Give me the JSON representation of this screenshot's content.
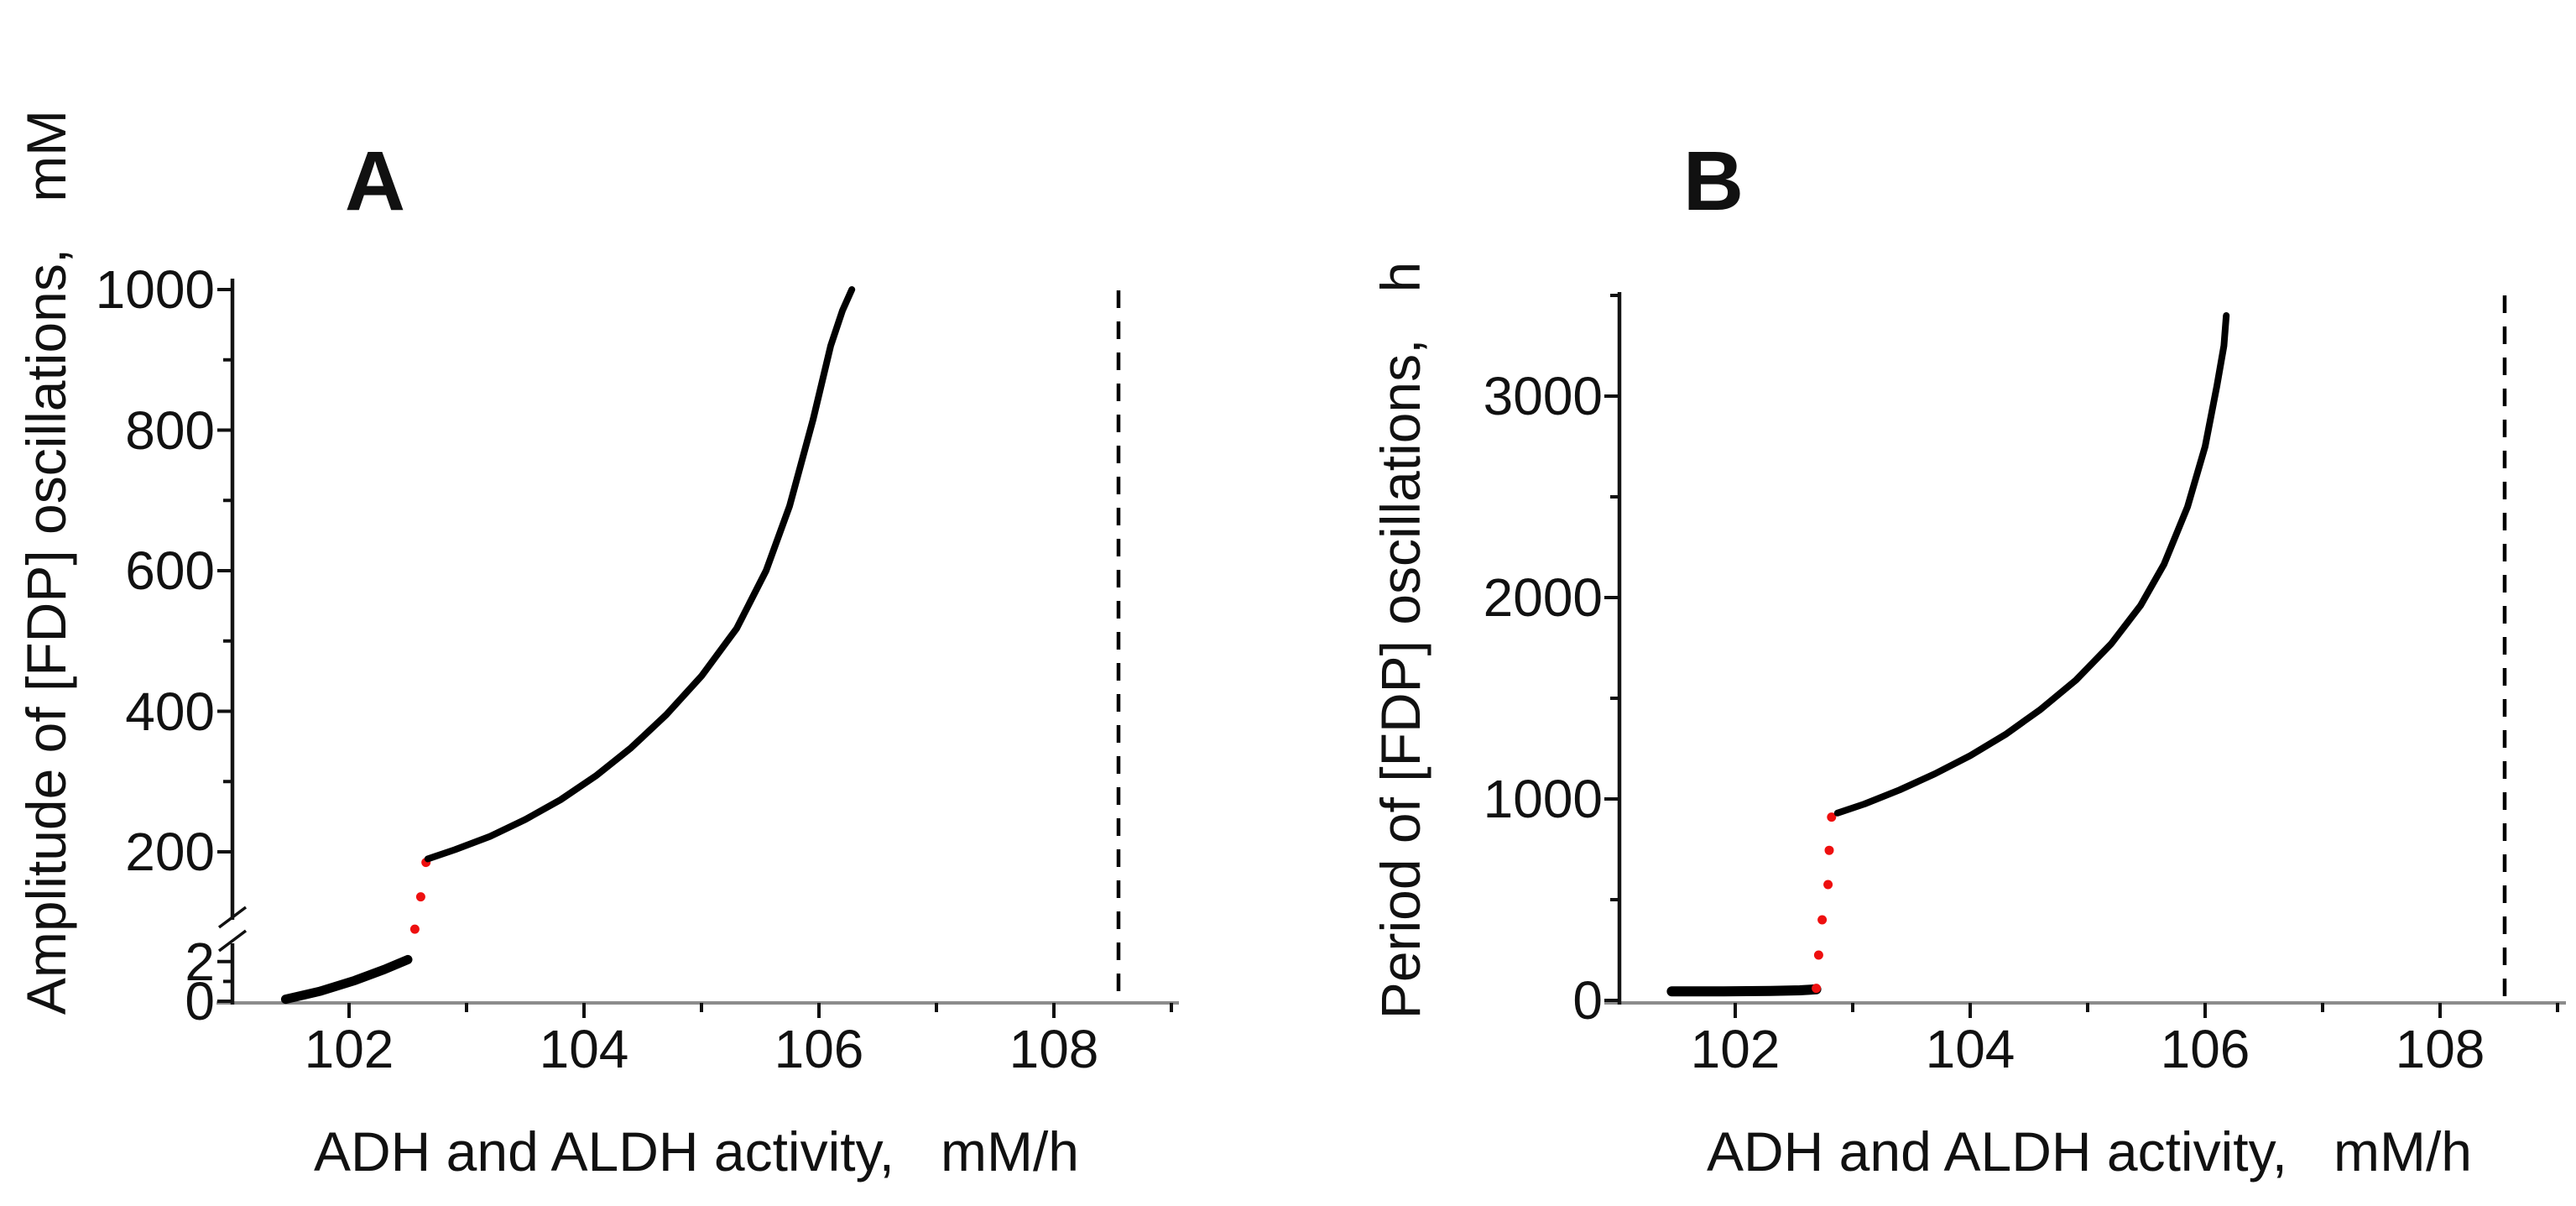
{
  "figure": {
    "background": "#ffffff",
    "description_title": ""
  },
  "colors": {
    "curve": "#000000",
    "unstable_dots": "#ee0f0f",
    "x_axis_line": "#8c8c8c",
    "y_axis_line": "#141414",
    "dashed_line": "#000000",
    "text": "#111111"
  },
  "panel_a": {
    "letter": "A",
    "y_axis_label": "Amplitude of [FDP] oscillations,   mM",
    "x_axis_label": "ADH and ALDH activity,   mM/h",
    "y_tick_labels": [
      "1000",
      "800",
      "600",
      "400",
      "200",
      "2",
      "0"
    ],
    "x_tick_labels": [
      "102",
      "104",
      "106",
      "108"
    ]
  },
  "panel_b": {
    "letter": "B",
    "y_axis_label": "Period of [FDP] oscillations,   h",
    "x_axis_label": "ADH and ALDH activity,   mM/h",
    "y_tick_labels": [
      "3000",
      "2000",
      "1000",
      "0"
    ],
    "x_tick_labels": [
      "102",
      "104",
      "106",
      "108"
    ]
  },
  "chart_data": [
    {
      "type": "line",
      "panel": "A",
      "title": "A",
      "xlabel": "ADH and ALDH activity, mM/h",
      "ylabel": "Amplitude of [FDP] oscillations, mM",
      "x_range": [
        101,
        109
      ],
      "ylim": [
        0,
        1000
      ],
      "y_axis_break_between": [
        2,
        200
      ],
      "grid": false,
      "legend": false,
      "x_ticks": [
        {
          "v": 102,
          "major": true
        },
        {
          "v": 103,
          "major": false
        },
        {
          "v": 104,
          "major": true
        },
        {
          "v": 105,
          "major": false
        },
        {
          "v": 106,
          "major": true
        },
        {
          "v": 107,
          "major": false
        },
        {
          "v": 108,
          "major": true
        },
        {
          "v": 109,
          "major": false
        }
      ],
      "y_ticks": [
        {
          "v": 1000,
          "scale": "high",
          "major": true
        },
        {
          "v": 900,
          "scale": "high",
          "major": false
        },
        {
          "v": 800,
          "scale": "high",
          "major": true
        },
        {
          "v": 700,
          "scale": "high",
          "major": false
        },
        {
          "v": 600,
          "scale": "high",
          "major": true
        },
        {
          "v": 500,
          "scale": "high",
          "major": false
        },
        {
          "v": 400,
          "scale": "high",
          "major": true
        },
        {
          "v": 300,
          "scale": "high",
          "major": false
        },
        {
          "v": 200,
          "scale": "high",
          "major": true
        },
        {
          "v": 2,
          "scale": "low",
          "major": true
        },
        {
          "v": 1,
          "scale": "low",
          "major": false
        },
        {
          "v": 0,
          "scale": "low",
          "major": true
        }
      ],
      "series": [
        {
          "name": "stable low-amplitude branch",
          "style": "line",
          "color": "#000000",
          "yscale": "low",
          "points": [
            [
              101.46,
              0.1
            ],
            [
              101.75,
              0.5
            ],
            [
              102.05,
              1.05
            ],
            [
              102.3,
              1.6
            ],
            [
              102.5,
              2.1
            ]
          ]
        },
        {
          "name": "unstable jump (subcritical transition)",
          "style": "dots",
          "color": "#ee0f0f",
          "yscale": "high",
          "points": [
            [
              102.56,
              90
            ],
            [
              102.61,
              136
            ],
            [
              102.655,
              185
            ]
          ]
        },
        {
          "name": "stable high-amplitude branch",
          "style": "line",
          "color": "#000000",
          "yscale": "high",
          "points": [
            [
              102.67,
              190
            ],
            [
              102.9,
              203
            ],
            [
              103.2,
              222
            ],
            [
              103.5,
              246
            ],
            [
              103.8,
              274
            ],
            [
              104.1,
              308
            ],
            [
              104.4,
              348
            ],
            [
              104.7,
              395
            ],
            [
              105.0,
              450
            ],
            [
              105.3,
              518
            ],
            [
              105.55,
              600
            ],
            [
              105.75,
              692
            ],
            [
              105.95,
              815
            ],
            [
              106.1,
              920
            ],
            [
              106.2,
              970
            ],
            [
              106.28,
              1000
            ]
          ]
        },
        {
          "name": "oscillation boundary (dashed)",
          "style": "dashed_vline",
          "color": "#000000",
          "x": 108.55
        }
      ]
    },
    {
      "type": "line",
      "panel": "B",
      "title": "B",
      "xlabel": "ADH and ALDH activity, mM/h",
      "ylabel": "Period of [FDP] oscillations, h",
      "x_range": [
        101,
        109
      ],
      "ylim": [
        0,
        3500
      ],
      "grid": false,
      "legend": false,
      "x_ticks": [
        {
          "v": 102,
          "major": true
        },
        {
          "v": 103,
          "major": false
        },
        {
          "v": 104,
          "major": true
        },
        {
          "v": 105,
          "major": false
        },
        {
          "v": 106,
          "major": true
        },
        {
          "v": 107,
          "major": false
        },
        {
          "v": 108,
          "major": true
        },
        {
          "v": 109,
          "major": false
        }
      ],
      "y_ticks": [
        {
          "v": 3500,
          "scale": "main",
          "major": false
        },
        {
          "v": 3000,
          "scale": "main",
          "major": true
        },
        {
          "v": 2500,
          "scale": "main",
          "major": false
        },
        {
          "v": 2000,
          "scale": "main",
          "major": true
        },
        {
          "v": 1500,
          "scale": "main",
          "major": false
        },
        {
          "v": 1000,
          "scale": "main",
          "major": true
        },
        {
          "v": 500,
          "scale": "main",
          "major": false
        },
        {
          "v": 0,
          "scale": "main",
          "major": true
        }
      ],
      "series": [
        {
          "name": "stable short-period branch",
          "style": "line",
          "color": "#000000",
          "yscale": "main",
          "points": [
            [
              101.46,
              45
            ],
            [
              101.9,
              45
            ],
            [
              102.3,
              47
            ],
            [
              102.55,
              50
            ],
            [
              102.69,
              55
            ]
          ]
        },
        {
          "name": "unstable jump (subcritical transition)",
          "style": "dots",
          "color": "#ee0f0f",
          "yscale": "main",
          "points": [
            [
              102.69,
              60
            ],
            [
              102.71,
              225
            ],
            [
              102.74,
              400
            ],
            [
              102.79,
              575
            ],
            [
              102.8,
              745
            ],
            [
              102.82,
              910
            ]
          ]
        },
        {
          "name": "stable long-period branch",
          "style": "line",
          "color": "#000000",
          "yscale": "main",
          "points": [
            [
              102.87,
              930
            ],
            [
              103.1,
              975
            ],
            [
              103.4,
              1045
            ],
            [
              103.7,
              1125
            ],
            [
              104.0,
              1215
            ],
            [
              104.3,
              1320
            ],
            [
              104.6,
              1445
            ],
            [
              104.9,
              1590
            ],
            [
              105.2,
              1770
            ],
            [
              105.45,
              1960
            ],
            [
              105.65,
              2165
            ],
            [
              105.85,
              2450
            ],
            [
              106.0,
              2750
            ],
            [
              106.1,
              3050
            ],
            [
              106.16,
              3250
            ],
            [
              106.18,
              3400
            ]
          ]
        },
        {
          "name": "oscillation boundary (dashed)",
          "style": "dashed_vline",
          "color": "#000000",
          "x": 108.55
        }
      ]
    }
  ]
}
